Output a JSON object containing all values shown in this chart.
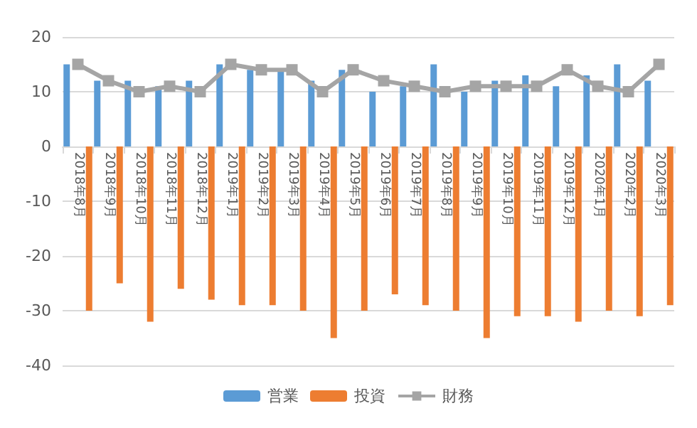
{
  "chart_data": {
    "type": "bar",
    "categories": [
      "2018年8月",
      "2018年9月",
      "2018年10月",
      "2018年11月",
      "2018年12月",
      "2019年1月",
      "2019年2月",
      "2019年3月",
      "2019年4月",
      "2019年5月",
      "2019年6月",
      "2019年7月",
      "2019年8月",
      "2019年9月",
      "2019年10月",
      "2019年11月",
      "2019年12月",
      "2020年1月",
      "2020年2月",
      "2020年3月"
    ],
    "series": [
      {
        "name": "営業",
        "color": "#5b9bd5",
        "values": [
          15,
          12,
          12,
          11,
          12,
          15,
          14,
          14,
          12,
          14,
          10,
          11,
          15,
          10,
          12,
          13,
          11,
          13,
          15,
          12
        ]
      },
      {
        "name": "投資",
        "color": "#ed7d31",
        "values": [
          -30,
          -25,
          -32,
          -26,
          -28,
          -29,
          -29,
          -30,
          -35,
          -30,
          -27,
          -29,
          -30,
          -35,
          -31,
          -31,
          -32,
          -30,
          -31,
          -29
        ]
      },
      {
        "name": "財務",
        "type": "line",
        "color": "#a5a5a5",
        "values": [
          15,
          12,
          10,
          11,
          10,
          15,
          14,
          14,
          10,
          14,
          12,
          11,
          10,
          11,
          11,
          11,
          14,
          11,
          10,
          15
        ]
      }
    ],
    "ylim": [
      -40,
      20
    ],
    "yticks": [
      -40,
      -30,
      -20,
      -10,
      0,
      10,
      20
    ],
    "grid": "y",
    "legend": "bottom",
    "marker": "square",
    "line_style": "solid"
  }
}
